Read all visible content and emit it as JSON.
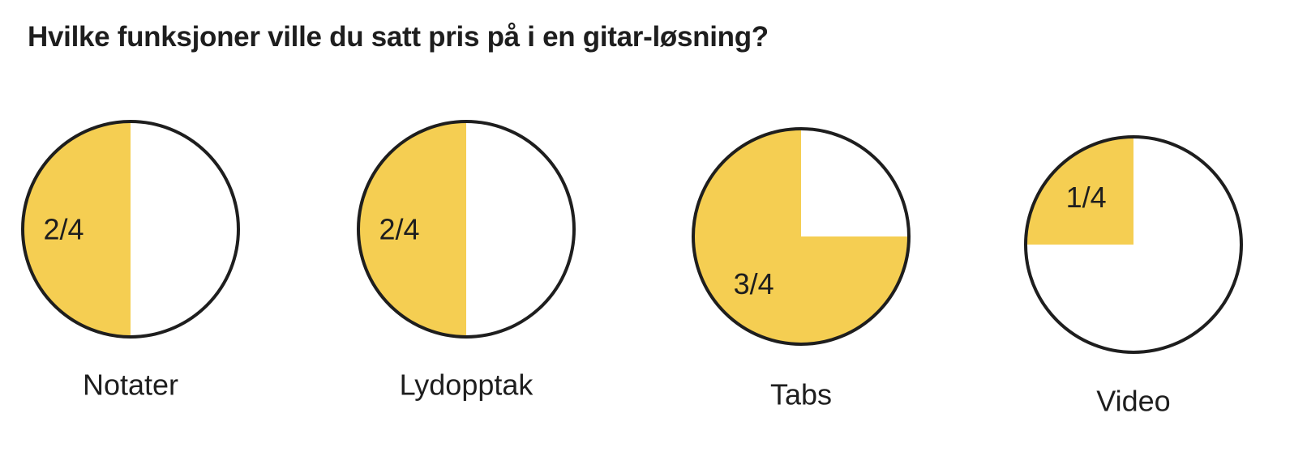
{
  "question": "Hvilke funksjoner ville du satt pris på i en gitar-løsning?",
  "colors": {
    "filled": "#F5CE52",
    "empty": "#FFFFFF",
    "outline": "#1E1E1E",
    "text": "#1E1E1E"
  },
  "chart_data": {
    "type": "pie",
    "title": "Hvilke funksjoner ville du satt pris på i en gitar-løsning?",
    "total": 4,
    "categories": [
      "Notater",
      "Lydopptak",
      "Tabs",
      "Video"
    ],
    "values": [
      2,
      2,
      3,
      1
    ],
    "value_labels": [
      "2/4",
      "2/4",
      "3/4",
      "1/4"
    ]
  }
}
